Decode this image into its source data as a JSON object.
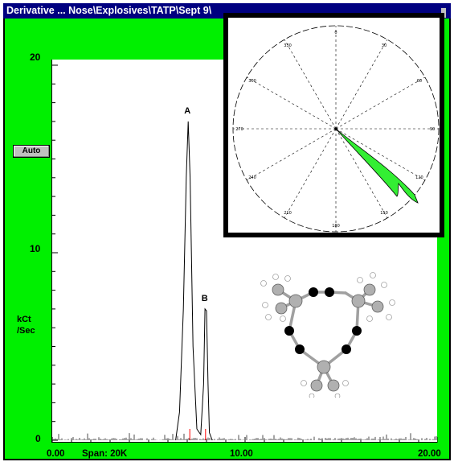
{
  "window": {
    "title": "Derivative ... Nose\\Explosives\\TATP\\Sept 9\\"
  },
  "colors": {
    "background": "#00f000",
    "titlebar": "#000080",
    "plot_bg": "#ffffff",
    "polar_lobe": "#33ee33"
  },
  "controls": {
    "auto_label": "Auto"
  },
  "axes": {
    "y_ticks": [
      "20",
      "10",
      "0"
    ],
    "y_label_line1": "kCt",
    "y_label_line2": "/Sec",
    "x_ticks": [
      "0.00",
      "10.00",
      "20.00"
    ],
    "span_text": "Span: 20K"
  },
  "peaks": {
    "a_label": "A",
    "b_label": "B"
  },
  "chart_data": {
    "type": "line",
    "title": "",
    "xlim": [
      0,
      20
    ],
    "ylim": [
      0,
      20
    ],
    "ylabel": "kCt /Sec",
    "series": [
      {
        "x": [
          6.4,
          6.6,
          6.8,
          6.95,
          7.05,
          7.15,
          7.3,
          7.5,
          7.7,
          7.85,
          7.92,
          8.0,
          8.08,
          8.15,
          8.3
        ],
        "y": [
          0,
          1.5,
          7,
          14,
          17,
          14,
          5,
          0.6,
          0.3,
          3,
          7,
          6.9,
          3,
          0.4,
          0
        ]
      }
    ],
    "peaks": [
      {
        "label": "A",
        "x": 7.05,
        "y": 17
      },
      {
        "label": "B",
        "x": 7.95,
        "y": 7
      }
    ]
  },
  "inset": {
    "angle_labels": [
      "0",
      "30",
      "60",
      "90",
      "120",
      "150",
      "180",
      "210",
      "240",
      "270",
      "300",
      "330"
    ]
  }
}
